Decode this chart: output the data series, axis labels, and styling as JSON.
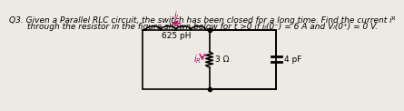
{
  "bg_color": "#ede9e3",
  "text_color": "#000000",
  "title_line1": "Q3. Given a Parallel RLC circuit, the switch has been closed for a long time. Find the current iᴿ",
  "title_line2": "through the resistor in the figure shown below for t >0 if iₗ(0⁻) = 6 A and Vₗ(0⁺) = 0 V.",
  "inductor_label": "625 pH",
  "resistor_label": "3 Ω",
  "capacitor_label": "4 pF",
  "iL_label": "i_L",
  "iR_label": "i_R",
  "arrow_color": "#cc0066",
  "circuit_color": "#000000",
  "title_fontsize": 6.5,
  "component_fontsize": 6.5
}
